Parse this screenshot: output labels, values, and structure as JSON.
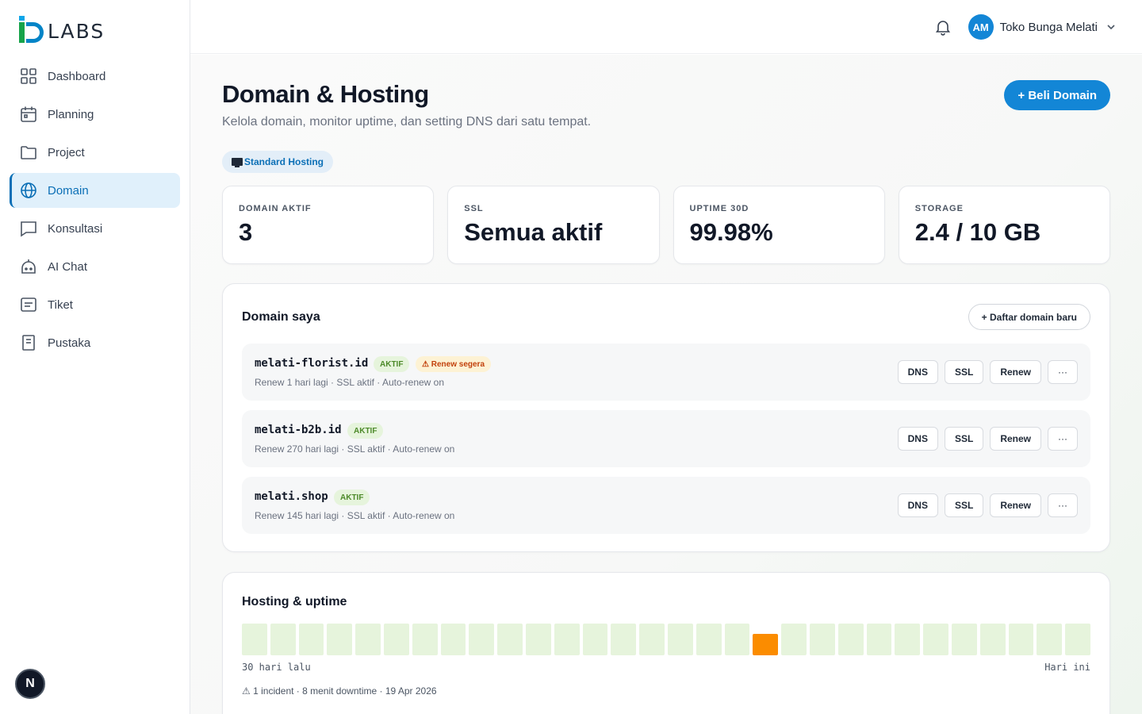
{
  "brand": {
    "logo_text": "LABS"
  },
  "sidebar": {
    "items": [
      {
        "label": "Dashboard",
        "icon": "grid-icon"
      },
      {
        "label": "Planning",
        "icon": "calendar-icon"
      },
      {
        "label": "Project",
        "icon": "folder-icon"
      },
      {
        "label": "Domain",
        "icon": "globe-icon",
        "active": true
      },
      {
        "label": "Konsultasi",
        "icon": "chat-bubble-icon"
      },
      {
        "label": "AI Chat",
        "icon": "robot-icon"
      },
      {
        "label": "Tiket",
        "icon": "ticket-icon"
      },
      {
        "label": "Pustaka",
        "icon": "book-icon"
      }
    ],
    "dev_badge": "N"
  },
  "header": {
    "user_initials": "AM",
    "user_name": "Toko Bunga Melati"
  },
  "page": {
    "title": "Domain & Hosting",
    "subtitle": "Kelola domain, monitor uptime, dan setting DNS dari satu tempat.",
    "primary_button": "+ Beli Domain",
    "plan_label": "Standard Hosting"
  },
  "stats": [
    {
      "label": "DOMAIN AKTIF",
      "value": "3"
    },
    {
      "label": "SSL",
      "value": "Semua aktif"
    },
    {
      "label": "UPTIME 30D",
      "value": "99.98%"
    },
    {
      "label": "STORAGE",
      "value": "2.4 / 10 GB"
    }
  ],
  "domains_card": {
    "title": "Domain saya",
    "add_button": "+ Daftar domain baru",
    "actions": {
      "dns": "DNS",
      "ssl": "SSL",
      "renew": "Renew",
      "more": "···"
    },
    "domains": [
      {
        "name": "melati-florist.id",
        "status": "AKTIF",
        "warning": "⚠ Renew segera",
        "meta": "Renew 1 hari lagi · SSL aktif · Auto-renew on"
      },
      {
        "name": "melati-b2b.id",
        "status": "AKTIF",
        "meta": "Renew 270 hari lagi · SSL aktif · Auto-renew on"
      },
      {
        "name": "melati.shop",
        "status": "AKTIF",
        "meta": "Renew 145 hari lagi · SSL aktif · Auto-renew on"
      }
    ]
  },
  "hosting_card": {
    "title": "Hosting & uptime",
    "days_total": 30,
    "incident_day_index": 18,
    "colors": {
      "ok": "#e6f4dc",
      "incident": "#fb8c00"
    },
    "left_label": "30 hari lalu",
    "right_label": "Hari ini",
    "note": "⚠ 1 incident · 8 menit downtime · 19 Apr 2026"
  },
  "colors": {
    "accent": "#1386d6",
    "active_nav_bg": "#e0f0fb",
    "ok_badge": "#4d8a2a",
    "warn_badge": "#c2410c"
  }
}
